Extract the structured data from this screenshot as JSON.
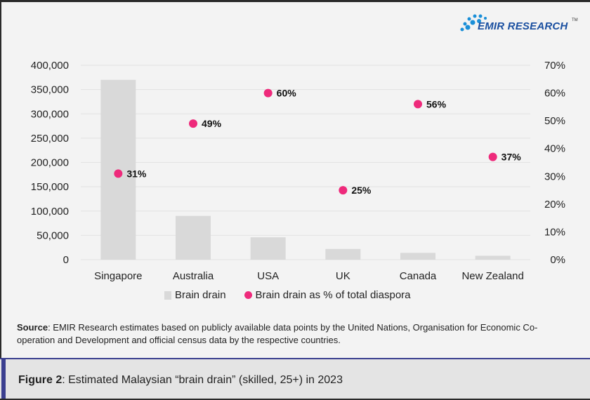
{
  "logo": {
    "text": "EMIR RESEARCH",
    "tm": "TM",
    "color": "#1a8fd8"
  },
  "chart_data": {
    "type": "bar+scatter",
    "categories": [
      "Singapore",
      "Australia",
      "USA",
      "UK",
      "Canada",
      "New Zealand"
    ],
    "series": [
      {
        "name": "Brain drain",
        "type": "bar",
        "axis": "left",
        "color": "#d9d9d9",
        "values": [
          370000,
          90000,
          46000,
          22000,
          14000,
          8000
        ]
      },
      {
        "name": "Brain drain as % of total diaspora",
        "type": "scatter",
        "axis": "right",
        "color": "#ee2a7b",
        "values": [
          31,
          49,
          60,
          25,
          56,
          37
        ],
        "labels": [
          "31%",
          "49%",
          "60%",
          "25%",
          "56%",
          "37%"
        ]
      }
    ],
    "y_left": {
      "range": [
        0,
        400000
      ],
      "ticks": [
        "0",
        "50,000",
        "100,000",
        "150,000",
        "200,000",
        "250,000",
        "300,000",
        "350,000",
        "400,000"
      ]
    },
    "y_right": {
      "range": [
        0,
        70
      ],
      "ticks": [
        "0%",
        "10%",
        "20%",
        "30%",
        "40%",
        "50%",
        "60%",
        "70%"
      ]
    },
    "grid": true,
    "legend": "bottom"
  },
  "source": {
    "label": "Source",
    "text": ": EMIR Research estimates based on publicly available data points by the United Nations, Organisation for Economic Co-operation and Development and official census data by the respective countries."
  },
  "caption": {
    "label": "Figure 2",
    "text": ": Estimated Malaysian “brain drain” (skilled, 25+) in 2023"
  }
}
